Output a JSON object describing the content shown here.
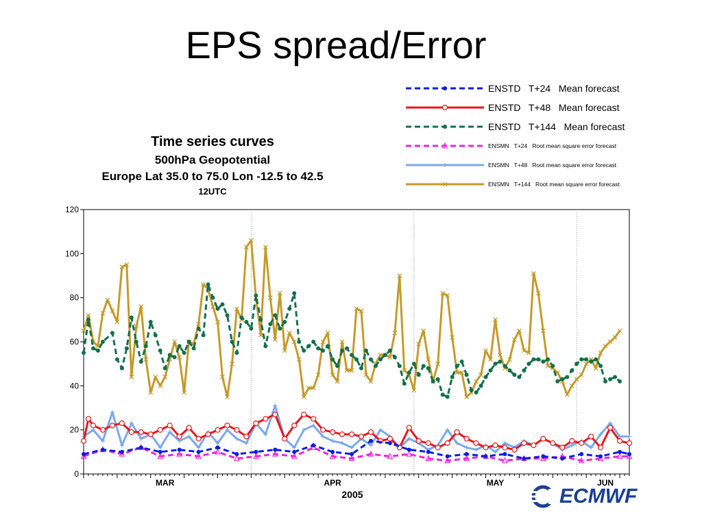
{
  "slide": {
    "title": "EPS spread/Error"
  },
  "logo": {
    "text": "ECMWF"
  },
  "chart_data": {
    "type": "line",
    "title": "Time series curves",
    "subtitle_lines": [
      "500hPa Geopotential",
      "Europe  Lat  35.0 to 75.0 Lon  -12.5 to  42.5",
      "12UTC"
    ],
    "xlabel": "2005",
    "ylim": [
      0,
      120
    ],
    "yticks": [
      0,
      20,
      40,
      60,
      80,
      100,
      120
    ],
    "xlim": [
      0,
      114
    ],
    "month_labels": [
      {
        "label": "MAR",
        "day": 17
      },
      {
        "label": "APR",
        "day": 52
      },
      {
        "label": "MAY",
        "day": 86
      },
      {
        "label": "JUN",
        "day": 109
      }
    ],
    "month_boundaries": [
      35,
      69,
      103
    ],
    "grid": "vertical",
    "legend_position": "top-right",
    "series": [
      {
        "name": "ENSTD   T+24   Mean forecast",
        "color": "#0a1ee0",
        "style": "dashed",
        "marker": "dot",
        "legend_size": "big",
        "x": [
          0,
          4,
          8,
          12,
          16,
          20,
          24,
          28,
          32,
          36,
          40,
          44,
          48,
          52,
          56,
          60,
          64,
          68,
          72,
          76,
          80,
          84,
          88,
          92,
          96,
          100,
          104,
          108,
          112,
          114
        ],
        "y": [
          9,
          11,
          10,
          12,
          10,
          11,
          10,
          12,
          9,
          10,
          11,
          10,
          13,
          10,
          9,
          15,
          14,
          11,
          10,
          8,
          9,
          8,
          9,
          7,
          8,
          7,
          9,
          8,
          10,
          9
        ]
      },
      {
        "name": "ENSTD   T+48   Mean forecast",
        "color": "#e8161a",
        "style": "solid",
        "marker": "circle",
        "legend_size": "big",
        "x": [
          0,
          1,
          2,
          4,
          6,
          8,
          10,
          12,
          14,
          16,
          18,
          20,
          22,
          24,
          26,
          28,
          30,
          32,
          34,
          36,
          38,
          40,
          42,
          44,
          46,
          48,
          50,
          52,
          54,
          56,
          58,
          60,
          62,
          64,
          66,
          68,
          70,
          72,
          74,
          76,
          78,
          80,
          82,
          84,
          86,
          88,
          90,
          92,
          94,
          96,
          98,
          100,
          102,
          104,
          106,
          108,
          110,
          112,
          114
        ],
        "y": [
          15,
          25,
          22,
          20,
          22,
          23,
          19,
          19,
          18,
          20,
          22,
          17,
          21,
          16,
          18,
          20,
          22,
          20,
          17,
          23,
          25,
          27,
          16,
          22,
          27,
          25,
          20,
          19,
          18,
          18,
          17,
          19,
          15,
          16,
          12,
          21,
          15,
          14,
          12,
          14,
          19,
          16,
          14,
          12,
          13,
          12,
          11,
          14,
          13,
          16,
          14,
          12,
          15,
          14,
          17,
          12,
          21,
          15,
          14
        ]
      },
      {
        "name": "ENSTD   T+144   Mean forecast",
        "color": "#13704a",
        "style": "dashed",
        "marker": "dot",
        "legend_size": "big",
        "x": [
          0,
          1,
          2,
          3,
          4,
          6,
          7,
          8,
          9,
          10,
          11,
          12,
          13,
          14,
          15,
          16,
          17,
          18,
          19,
          20,
          21,
          22,
          23,
          24,
          25,
          26,
          27,
          28,
          29,
          30,
          31,
          32,
          33,
          34,
          35,
          36,
          37,
          38,
          39,
          40,
          41,
          42,
          43,
          44,
          45,
          46,
          47,
          48,
          49,
          50,
          51,
          52,
          53,
          54,
          55,
          56,
          57,
          58,
          59,
          60,
          61,
          62,
          63,
          64,
          65,
          66,
          67,
          68,
          69,
          70,
          71,
          72,
          73,
          74,
          75,
          76,
          77,
          78,
          79,
          80,
          81,
          82,
          83,
          84,
          85,
          86,
          87,
          88,
          89,
          90,
          91,
          92,
          93,
          94,
          95,
          96,
          97,
          98,
          99,
          100,
          101,
          102,
          103,
          104,
          105,
          106,
          107,
          108,
          109,
          110,
          111,
          112
        ],
        "y": [
          55,
          70,
          57,
          56,
          60,
          64,
          52,
          48,
          57,
          71,
          60,
          51,
          58,
          69,
          63,
          56,
          48,
          54,
          53,
          58,
          55,
          60,
          57,
          66,
          63,
          86,
          80,
          75,
          77,
          72,
          60,
          55,
          71,
          69,
          66,
          81,
          70,
          58,
          68,
          72,
          66,
          69,
          75,
          82,
          60,
          56,
          58,
          60,
          57,
          56,
          58,
          52,
          49,
          56,
          57,
          54,
          52,
          48,
          56,
          52,
          49,
          52,
          54,
          56,
          53,
          49,
          41,
          46,
          50,
          45,
          49,
          48,
          42,
          43,
          36,
          35,
          44,
          49,
          51,
          45,
          38,
          37,
          40,
          44,
          47,
          50,
          51,
          49,
          47,
          45,
          44,
          47,
          50,
          52,
          52,
          51,
          52,
          49,
          42,
          43,
          44,
          47,
          50,
          52,
          52,
          51,
          52,
          49,
          42,
          43,
          44,
          42
        ]
      },
      {
        "name": "ENSMN   T+24   Root mean square error forecast",
        "color": "#ee22dd",
        "style": "dashed",
        "marker": "triangle",
        "legend_size": "small",
        "x": [
          0,
          4,
          8,
          12,
          16,
          20,
          24,
          28,
          32,
          36,
          40,
          44,
          48,
          52,
          56,
          60,
          64,
          68,
          72,
          76,
          80,
          84,
          88,
          92,
          96,
          100,
          104,
          108,
          112,
          114
        ],
        "y": [
          8,
          11,
          9,
          12,
          8,
          9,
          8,
          10,
          7,
          8,
          9,
          8,
          12,
          8,
          7,
          9,
          8,
          9,
          7,
          6,
          7,
          8,
          6,
          7,
          7,
          8,
          6,
          7,
          8,
          8
        ]
      },
      {
        "name": "ENSMN   T+48   Root mean square error forecast",
        "color": "#7aa8ee",
        "style": "solid",
        "marker": "plus",
        "legend_size": "small",
        "x": [
          0,
          2,
          4,
          6,
          8,
          10,
          12,
          14,
          16,
          18,
          20,
          22,
          24,
          26,
          28,
          30,
          32,
          34,
          36,
          38,
          40,
          42,
          44,
          46,
          48,
          50,
          52,
          54,
          56,
          58,
          60,
          62,
          64,
          66,
          68,
          70,
          72,
          74,
          76,
          78,
          80,
          82,
          84,
          86,
          88,
          90,
          92,
          94,
          96,
          98,
          100,
          102,
          104,
          106,
          108,
          110,
          112,
          114
        ],
        "y": [
          17,
          20,
          15,
          28,
          13,
          23,
          16,
          18,
          12,
          19,
          15,
          17,
          12,
          19,
          14,
          20,
          16,
          14,
          23,
          18,
          31,
          16,
          12,
          20,
          22,
          17,
          15,
          14,
          12,
          16,
          13,
          20,
          17,
          12,
          16,
          14,
          11,
          13,
          20,
          14,
          12,
          11,
          13,
          10,
          14,
          12,
          15,
          13,
          16,
          14,
          11,
          13,
          15,
          12,
          18,
          23,
          17,
          17
        ]
      },
      {
        "name": "ENSMN   T+144   Root mean square error forecast",
        "color": "#c49a2a",
        "style": "solid",
        "marker": "x",
        "legend_size": "small",
        "x": [
          0,
          1,
          2,
          3,
          4,
          5,
          6,
          7,
          8,
          9,
          10,
          11,
          12,
          13,
          14,
          15,
          16,
          17,
          18,
          19,
          20,
          21,
          22,
          23,
          24,
          25,
          26,
          27,
          28,
          29,
          30,
          31,
          32,
          33,
          34,
          35,
          36,
          37,
          38,
          39,
          40,
          41,
          42,
          43,
          44,
          45,
          46,
          47,
          48,
          49,
          50,
          51,
          52,
          53,
          54,
          55,
          56,
          57,
          58,
          59,
          60,
          61,
          62,
          63,
          64,
          65,
          66,
          67,
          68,
          69,
          70,
          71,
          72,
          73,
          74,
          75,
          76,
          77,
          78,
          79,
          80,
          81,
          82,
          83,
          84,
          85,
          86,
          87,
          88,
          89,
          90,
          91,
          92,
          93,
          94,
          95,
          96,
          97,
          98,
          99,
          100,
          101,
          102,
          103,
          104,
          105,
          106,
          107,
          108,
          109,
          110,
          111,
          112
        ],
        "y": [
          65,
          72,
          60,
          58,
          73,
          79,
          74,
          69,
          94,
          95,
          44,
          67,
          76,
          52,
          37,
          44,
          40,
          44,
          52,
          60,
          53,
          37,
          60,
          59,
          68,
          86,
          84,
          76,
          69,
          44,
          35,
          50,
          75,
          70,
          103,
          106,
          80,
          63,
          103,
          80,
          61,
          82,
          56,
          64,
          60,
          52,
          35,
          39,
          39,
          45,
          60,
          64,
          45,
          42,
          60,
          47,
          47,
          75,
          74,
          45,
          42,
          50,
          54,
          54,
          53,
          64,
          90,
          47,
          45,
          38,
          59,
          65,
          52,
          42,
          50,
          82,
          81,
          62,
          46,
          46,
          35,
          37,
          42,
          45,
          56,
          52,
          70,
          54,
          48,
          52,
          61,
          65,
          56,
          55,
          91,
          82,
          65,
          49,
          48,
          46,
          42,
          36,
          40,
          43,
          45,
          50,
          52,
          48,
          55,
          58,
          60,
          62,
          65
        ]
      }
    ]
  }
}
